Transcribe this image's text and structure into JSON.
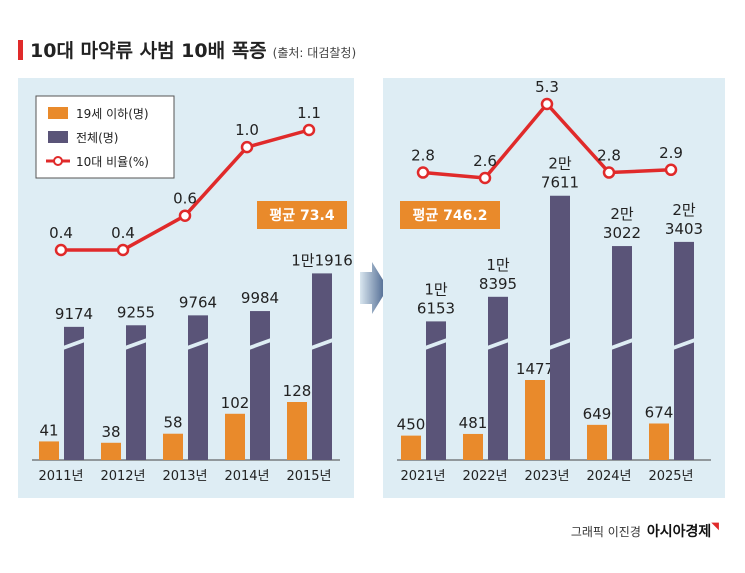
{
  "header": {
    "title": "10대 마약류 사범 10배 폭증",
    "source": "(출처: 대검찰청)"
  },
  "footer": {
    "credit": "그래픽 이진경",
    "brand": "아시아경제"
  },
  "chart_data": [
    {
      "type": "bar",
      "categories": [
        "2011년",
        "2012년",
        "2013년",
        "2014년",
        "2015년"
      ],
      "series": [
        {
          "name": "19세 이하(명)",
          "values": [
            41,
            38,
            58,
            102,
            128
          ],
          "labels": [
            "41",
            "38",
            "58",
            "102",
            "128"
          ],
          "color": "#e98a2b"
        },
        {
          "name": "전체(명)",
          "values": [
            9174,
            9255,
            9764,
            9984,
            11916
          ],
          "labels": [
            "9174",
            "9255",
            "9764",
            "9984",
            "1만1916"
          ],
          "color": "#5a5478"
        },
        {
          "name": "10대 비율(%)",
          "type": "line",
          "values": [
            0.4,
            0.4,
            0.6,
            1.0,
            1.1
          ],
          "labels": [
            "0.4",
            "0.4",
            "0.6",
            "1.0",
            "1.1"
          ],
          "color": "#e02a2a"
        }
      ],
      "average_label": "평균 73.4",
      "legend_position": "top-left",
      "axis_break": true
    },
    {
      "type": "bar",
      "categories": [
        "2021년",
        "2022년",
        "2023년",
        "2024년",
        "2025년"
      ],
      "series": [
        {
          "name": "19세 이하(명)",
          "values": [
            450,
            481,
            1477,
            649,
            674
          ],
          "labels": [
            "450",
            "481",
            "1477",
            "649",
            "674"
          ],
          "color": "#e98a2b"
        },
        {
          "name": "전체(명)",
          "values": [
            16153,
            18395,
            27611,
            23022,
            23403
          ],
          "labels": [
            "1만 6153",
            "1만 8395",
            "2만 7611",
            "2만 3022",
            "2만 3403"
          ],
          "color": "#5a5478"
        },
        {
          "name": "10대 비율(%)",
          "type": "line",
          "values": [
            2.8,
            2.6,
            5.3,
            2.8,
            2.9
          ],
          "labels": [
            "2.8",
            "2.6",
            "5.3",
            "2.8",
            "2.9"
          ],
          "color": "#e02a2a"
        }
      ],
      "average_label": "평균 746.2",
      "axis_break": true
    }
  ]
}
